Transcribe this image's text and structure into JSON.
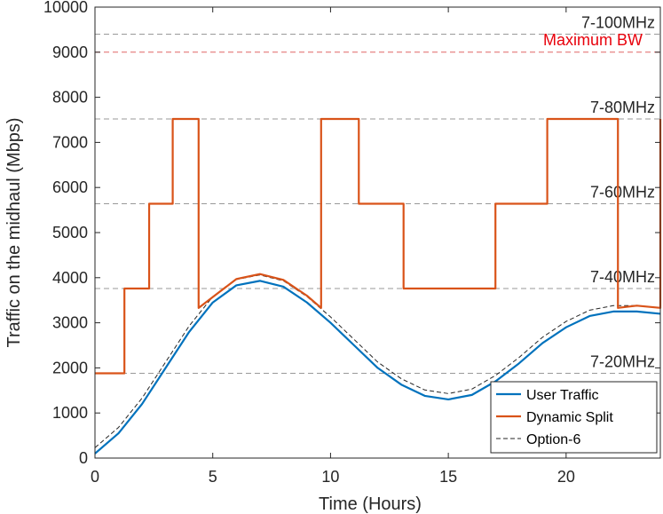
{
  "chart_data": {
    "type": "line",
    "xlabel": "Time (Hours)",
    "ylabel": "Traffic on the midhaul (Mbps)",
    "xlim": [
      0,
      24
    ],
    "ylim": [
      0,
      10000
    ],
    "xticks": [
      0,
      5,
      10,
      15,
      20
    ],
    "yticks": [
      0,
      1000,
      2000,
      3000,
      4000,
      5000,
      6000,
      7000,
      8000,
      9000,
      10000
    ],
    "grid": false,
    "legend_position": "bottom-right",
    "reference_lines": [
      {
        "label": "7-20MHz",
        "y": 1880,
        "style": "dashed"
      },
      {
        "label": "7-40MHz",
        "y": 3760,
        "style": "dashed"
      },
      {
        "label": "7-60MHz",
        "y": 5640,
        "style": "dashed"
      },
      {
        "label": "7-80MHz",
        "y": 7520,
        "style": "dashed"
      },
      {
        "label": "7-100MHz",
        "y": 9400,
        "style": "dashed"
      }
    ],
    "max_bw": {
      "label": "Maximum BW",
      "y": 9000,
      "color": "#e8000b"
    },
    "series": [
      {
        "name": "User Traffic",
        "color": "#0072bd",
        "x": [
          0,
          1,
          2,
          3,
          4,
          5,
          6,
          7,
          8,
          9,
          10,
          11,
          12,
          13,
          14,
          15,
          16,
          17,
          18,
          19,
          20,
          21,
          22,
          23,
          24
        ],
        "y": [
          100,
          550,
          1200,
          2000,
          2800,
          3450,
          3830,
          3930,
          3800,
          3450,
          3000,
          2500,
          2000,
          1630,
          1380,
          1300,
          1400,
          1700,
          2100,
          2550,
          2900,
          3150,
          3250,
          3250,
          3200
        ]
      },
      {
        "name": "Dynamic Split",
        "color": "#d95319",
        "x": [
          0,
          1.25,
          1.25,
          2.3,
          2.3,
          3.3,
          3.3,
          4.4,
          4.4,
          5,
          6,
          7,
          8,
          9,
          9.6,
          9.6,
          11.2,
          11.2,
          13.1,
          13.1,
          17,
          17,
          19.2,
          19.2,
          22.2,
          22.2,
          23,
          24,
          24
        ],
        "y": [
          1880,
          1880,
          3760,
          3760,
          5640,
          5640,
          7520,
          7520,
          3330,
          3570,
          3970,
          4080,
          3950,
          3600,
          3330,
          7520,
          7520,
          5640,
          5640,
          3760,
          3760,
          5640,
          5640,
          7520,
          7520,
          3330,
          3380,
          3330,
          7520
        ]
      },
      {
        "name": "Option-6",
        "color": "#262626",
        "x": [
          0,
          1,
          2,
          3,
          4,
          5,
          6,
          7,
          8,
          9,
          10,
          11,
          12,
          13,
          14,
          15,
          16,
          17,
          18,
          19,
          20,
          21,
          22,
          23,
          24
        ],
        "y": [
          230,
          680,
          1330,
          2130,
          2930,
          3580,
          3960,
          4060,
          3930,
          3580,
          3130,
          2630,
          2130,
          1760,
          1510,
          1430,
          1530,
          1830,
          2230,
          2680,
          3030,
          3280,
          3380,
          3380,
          3330
        ]
      }
    ]
  }
}
